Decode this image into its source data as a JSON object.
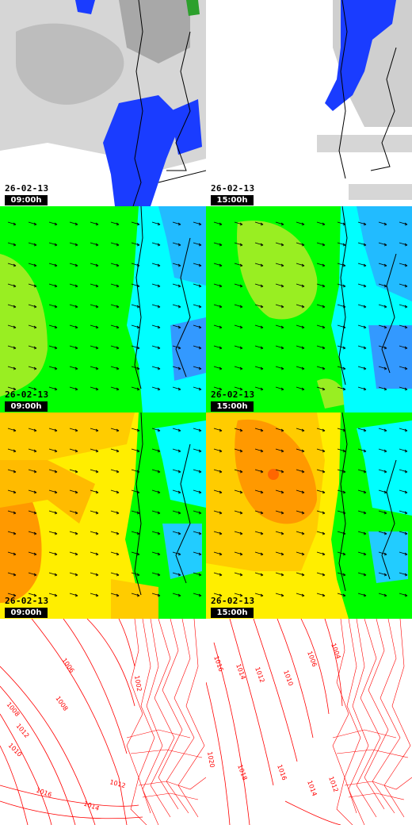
{
  "panels": [
    {
      "date": "26-02-13",
      "time": "09:00h",
      "layer": "cloud"
    },
    {
      "date": "26-02-13",
      "time": "15:00h",
      "layer": "cloud"
    },
    {
      "date": "26-02-13",
      "time": "09:00h",
      "layer": "wind"
    },
    {
      "date": "26-02-13",
      "time": "15:00h",
      "layer": "wind"
    },
    {
      "date": "26-02-13",
      "time": "09:00h",
      "layer": "temperature"
    },
    {
      "date": "26-02-13",
      "time": "15:00h",
      "layer": "temperature"
    },
    {
      "date": "",
      "time": "",
      "layer": "pressure"
    },
    {
      "date": "",
      "time": "",
      "layer": "pressure"
    }
  ],
  "isobar_labels_left": [
    "1006",
    "1008",
    "1008",
    "1010",
    "1012",
    "1012",
    "1014",
    "1016",
    "1002"
  ],
  "isobar_labels_right": [
    "1004",
    "1006",
    "1010",
    "1012",
    "1014",
    "1016",
    "1016",
    "1018",
    "1014",
    "1012",
    "1020"
  ],
  "colors": {
    "cloud_gray": "#c8c8c8",
    "rain_blue": "#1a3cff",
    "wind_green": "#00ff00",
    "wind_cyan": "#00ffff",
    "wind_lime": "#99ee22",
    "temp_orange": "#ff9900",
    "temp_yellow": "#ffee00",
    "isobar_red": "#ff0000"
  }
}
